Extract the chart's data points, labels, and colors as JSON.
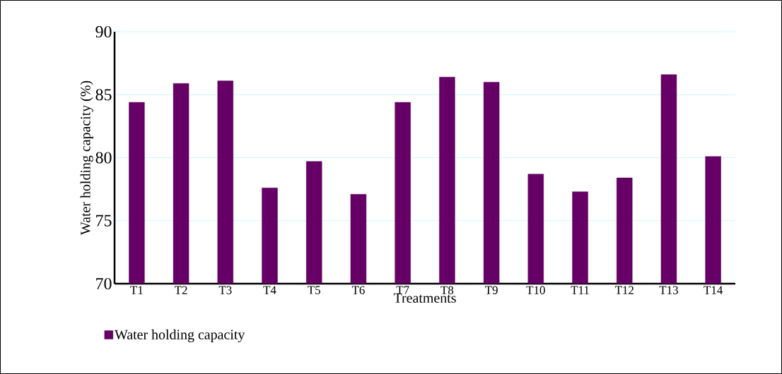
{
  "chart_data": {
    "type": "bar",
    "xlabel": "Treatments",
    "ylabel": "Water holding capacity (%)",
    "categories": [
      "T1",
      "T2",
      "T3",
      "T4",
      "T5",
      "T6",
      "T7",
      "T8",
      "T9",
      "T10",
      "T11",
      "T12",
      "T13",
      "T14"
    ],
    "series": [
      {
        "name": "Water holding capacity",
        "color": "#660066",
        "values": [
          84.4,
          85.9,
          86.1,
          77.6,
          79.7,
          77.1,
          84.4,
          86.4,
          86.0,
          78.7,
          77.3,
          78.4,
          86.6,
          80.1
        ]
      }
    ],
    "ylim": [
      70,
      90
    ],
    "yticks": [
      70,
      75,
      80,
      85,
      90
    ],
    "grid": "y",
    "legend": "bottom left"
  }
}
